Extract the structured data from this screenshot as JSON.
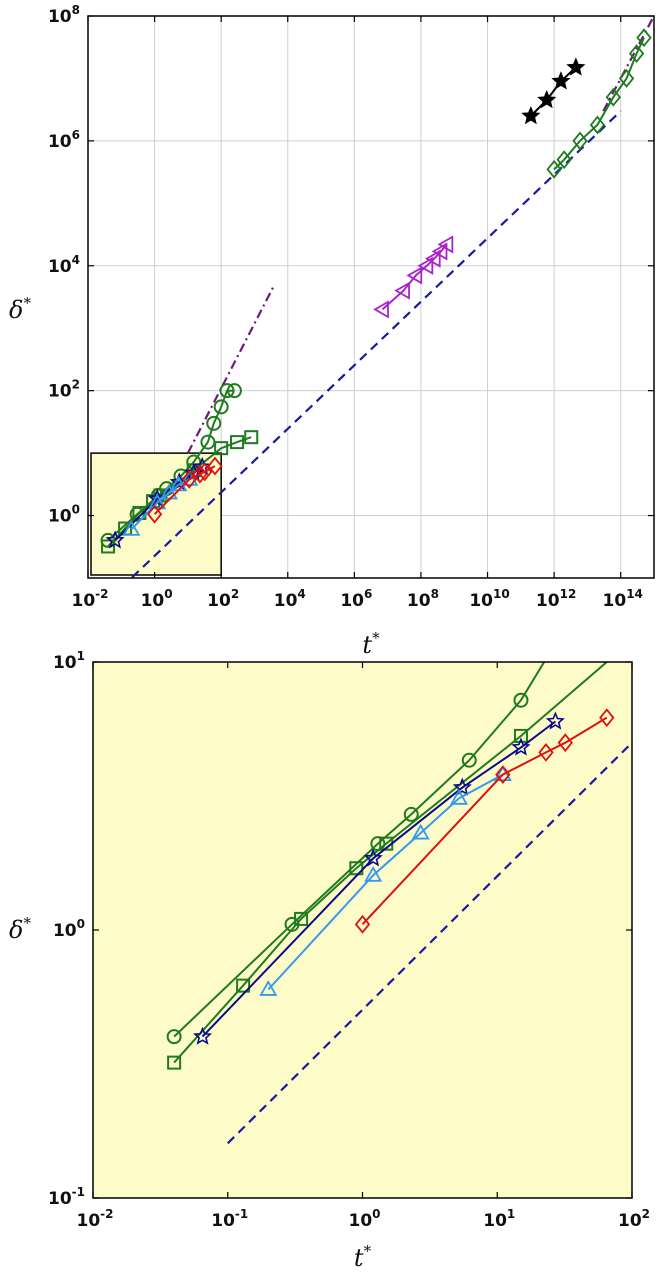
{
  "chart_data": [
    {
      "type": "line",
      "log_x": true,
      "log_y": true,
      "xlim": [
        0.01,
        1000000000000000.0
      ],
      "ylim": [
        0.1,
        100000000.0
      ],
      "xlabel": "t*",
      "ylabel": "δ*",
      "x_ticks": [
        {
          "base": "10",
          "exp": "-2",
          "value": 0.01
        },
        {
          "base": "10",
          "exp": "0",
          "value": 1
        },
        {
          "base": "10",
          "exp": "2",
          "value": 100
        },
        {
          "base": "10",
          "exp": "4",
          "value": 10000.0
        },
        {
          "base": "10",
          "exp": "6",
          "value": 1000000.0
        },
        {
          "base": "10",
          "exp": "8",
          "value": 100000000.0
        },
        {
          "base": "10",
          "exp": "10",
          "value": 10000000000.0
        },
        {
          "base": "10",
          "exp": "12",
          "value": 1000000000000.0
        },
        {
          "base": "10",
          "exp": "14",
          "value": 100000000000000.0
        }
      ],
      "y_ticks": [
        {
          "base": "10",
          "exp": "0",
          "value": 1
        },
        {
          "base": "10",
          "exp": "2",
          "value": 100
        },
        {
          "base": "10",
          "exp": "4",
          "value": 10000.0
        },
        {
          "base": "10",
          "exp": "6",
          "value": 1000000.0
        },
        {
          "base": "10",
          "exp": "8",
          "value": 100000000.0
        }
      ],
      "grid": true,
      "highlight_box": {
        "x": [
          0.01,
          100
        ],
        "y": [
          0.1,
          10
        ],
        "color": "#fdfcc8"
      },
      "series": [
        {
          "marker": "circle",
          "color": "#1e7b1e",
          "x": [
            0.04,
            0.3,
            1.3,
            2.3,
            6.2,
            15,
            40,
            60,
            100,
            150,
            250
          ],
          "y": [
            0.4,
            1.05,
            2.1,
            2.7,
            4.3,
            7.2,
            15,
            30,
            55,
            100,
            100
          ]
        },
        {
          "marker": "square",
          "color": "#1e7b1e",
          "x": [
            0.04,
            0.13,
            0.35,
            0.9,
            1.5,
            15,
            100,
            300,
            800
          ],
          "y": [
            0.32,
            0.62,
            1.1,
            1.7,
            2.1,
            5.3,
            12,
            15,
            18
          ]
        },
        {
          "marker": "star",
          "color": "#0b0b8a",
          "x": [
            0.065,
            1.2,
            5.5,
            15,
            27
          ],
          "y": [
            0.4,
            1.85,
            3.4,
            4.8,
            6
          ]
        },
        {
          "marker": "triangle-up",
          "color": "#3399ee",
          "x": [
            0.2,
            1.2,
            2.7,
            5.2,
            11
          ],
          "y": [
            0.6,
            1.6,
            2.3,
            3.1,
            3.8
          ]
        },
        {
          "marker": "diamond",
          "color": "#dd1111",
          "x": [
            1,
            11,
            23,
            32,
            65
          ],
          "y": [
            1.05,
            3.8,
            4.6,
            5,
            6.2
          ]
        },
        {
          "marker": "triangle-left",
          "color": "#aa22cc",
          "x": [
            7000000.0,
            30000000.0,
            70000000.0,
            150000000.0,
            250000000.0,
            400000000.0,
            600000000.0
          ],
          "y": [
            2000,
            4000,
            7000,
            10000,
            13000,
            17000,
            22000
          ]
        },
        {
          "marker": "diamond",
          "color": "#1e7b1e",
          "x": [
            1000000000000.0,
            2000000000000.0,
            6000000000000.0,
            20000000000000.0,
            60000000000000.0,
            150000000000000.0,
            300000000000000.0,
            500000000000000.0
          ],
          "y": [
            350000,
            500000,
            1000000,
            1800000,
            5000000,
            10000000,
            25000000,
            45000000
          ]
        },
        {
          "marker": "star-filled",
          "color": "#000000",
          "x": [
            200000000000.0,
            600000000000.0,
            1600000000000.0,
            4500000000000.0
          ],
          "y": [
            2500000,
            4500000,
            9000000,
            15000000
          ]
        }
      ],
      "reference_lines": [
        {
          "style": "dashed",
          "color": "#1a1aa0",
          "x": [
            0.1,
            100000000000000.0
          ],
          "y": [
            0.07,
            3000000
          ]
        },
        {
          "style": "dashdot",
          "color": "#6b1a78",
          "x": [
            10,
            4000
          ],
          "y": [
            10,
            5000
          ]
        },
        {
          "style": "dashdot",
          "color": "#6b1a78",
          "x": [
            30000000000000.0,
            1000000000000000.0
          ],
          "y": [
            3000000,
            100000000
          ]
        }
      ]
    },
    {
      "type": "line",
      "log_x": true,
      "log_y": true,
      "xlim": [
        0.01,
        100
      ],
      "ylim": [
        0.1,
        10
      ],
      "xlabel": "t*",
      "ylabel": "δ*",
      "x_ticks": [
        {
          "base": "10",
          "exp": "-2",
          "value": 0.01
        },
        {
          "base": "10",
          "exp": "-1",
          "value": 0.1
        },
        {
          "base": "10",
          "exp": "0",
          "value": 1
        },
        {
          "base": "10",
          "exp": "1",
          "value": 10
        },
        {
          "base": "10",
          "exp": "2",
          "value": 100
        }
      ],
      "y_ticks": [
        {
          "base": "10",
          "exp": "-1",
          "value": 0.1
        },
        {
          "base": "10",
          "exp": "0",
          "value": 1
        },
        {
          "base": "10",
          "exp": "1",
          "value": 10
        }
      ],
      "grid": false,
      "background": "#fdfcc8",
      "series": [
        {
          "marker": "circle",
          "color": "#1e7b1e",
          "x": [
            0.04,
            0.3,
            1.3,
            2.3,
            6.2,
            15
          ],
          "y": [
            0.4,
            1.05,
            2.1,
            2.7,
            4.3,
            7.2
          ],
          "extend_to": [
            25,
            11
          ]
        },
        {
          "marker": "square",
          "color": "#1e7b1e",
          "x": [
            0.04,
            0.13,
            0.35,
            0.9,
            1.5,
            15
          ],
          "y": [
            0.32,
            0.62,
            1.1,
            1.7,
            2.1,
            5.3
          ],
          "extend_to": [
            65,
            10
          ]
        },
        {
          "marker": "star",
          "color": "#0b0b8a",
          "x": [
            0.065,
            1.2,
            5.5,
            15,
            27
          ],
          "y": [
            0.4,
            1.85,
            3.4,
            4.8,
            6
          ]
        },
        {
          "marker": "triangle-up",
          "color": "#3399ee",
          "x": [
            0.2,
            1.2,
            2.7,
            5.2,
            11
          ],
          "y": [
            0.6,
            1.6,
            2.3,
            3.1,
            3.8
          ]
        },
        {
          "marker": "diamond",
          "color": "#dd1111",
          "x": [
            1,
            11,
            23,
            32,
            65
          ],
          "y": [
            1.05,
            3.8,
            4.6,
            5,
            6.2
          ]
        }
      ],
      "reference_lines": [
        {
          "style": "dashed",
          "color": "#1a1aa0",
          "x": [
            0.1,
            100
          ],
          "y": [
            0.16,
            5
          ]
        }
      ]
    }
  ]
}
